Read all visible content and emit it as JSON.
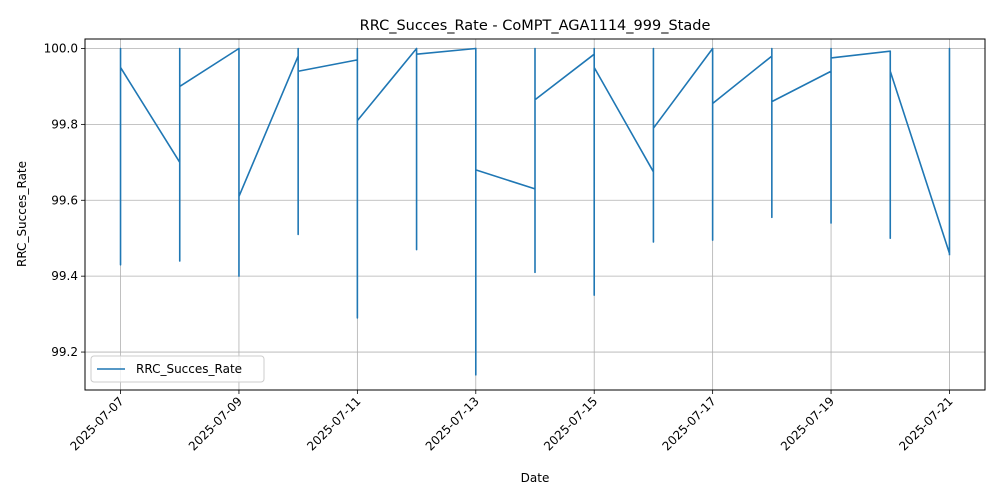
{
  "chart_data": {
    "type": "line",
    "title": "RRC_Succes_Rate - CoMPT_AGA1114_999_Stade",
    "xlabel": "Date",
    "ylabel": "RRC_Succes_Rate",
    "xlim": [
      "2025-07-06T09:36",
      "2025-07-21T14:24"
    ],
    "ylim": [
      99.1,
      100.025
    ],
    "grid": true,
    "legend_position": "lower-left",
    "x_ticks": [
      "2025-07-07",
      "2025-07-09",
      "2025-07-11",
      "2025-07-13",
      "2025-07-15",
      "2025-07-17",
      "2025-07-19",
      "2025-07-21"
    ],
    "y_ticks": [
      99.2,
      99.4,
      99.6,
      99.8,
      100.0
    ],
    "series": [
      {
        "name": "RRC_Succes_Rate",
        "color": "#1f77b4",
        "x": [
          "2025-07-07T00:00",
          "2025-07-07T00:00",
          "2025-07-07T00:00",
          "2025-07-07T00:00",
          "2025-07-07T00:00",
          "2025-07-07T00:00",
          "2025-07-08T00:00",
          "2025-07-08T00:00",
          "2025-07-08T00:00",
          "2025-07-08T00:00",
          "2025-07-08T00:00",
          "2025-07-09T00:00",
          "2025-07-09T00:00",
          "2025-07-09T00:00",
          "2025-07-10T00:00",
          "2025-07-10T00:00",
          "2025-07-10T00:00",
          "2025-07-10T00:00",
          "2025-07-11T00:00",
          "2025-07-11T00:00",
          "2025-07-11T00:00",
          "2025-07-11T00:00",
          "2025-07-12T00:00",
          "2025-07-12T00:00",
          "2025-07-12T00:00",
          "2025-07-12T00:00",
          "2025-07-13T00:00",
          "2025-07-13T00:00",
          "2025-07-13T00:00",
          "2025-07-14T00:00",
          "2025-07-14T00:00",
          "2025-07-14T00:00",
          "2025-07-14T00:00",
          "2025-07-15T00:00",
          "2025-07-15T00:00",
          "2025-07-15T00:00",
          "2025-07-15T00:00",
          "2025-07-16T00:00",
          "2025-07-16T00:00",
          "2025-07-16T00:00",
          "2025-07-16T00:00",
          "2025-07-17T00:00",
          "2025-07-17T00:00",
          "2025-07-17T00:00",
          "2025-07-17T00:00",
          "2025-07-18T00:00",
          "2025-07-18T00:00",
          "2025-07-18T00:00",
          "2025-07-18T00:00",
          "2025-07-18T00:00",
          "2025-07-19T00:00",
          "2025-07-19T00:00",
          "2025-07-19T00:00",
          "2025-07-19T00:00",
          "2025-07-20T00:00",
          "2025-07-20T00:00",
          "2025-07-20T00:00",
          "2025-07-20T00:00",
          "2025-07-21T00:00",
          "2025-07-21T00:00",
          "2025-07-21T00:00"
        ],
        "y": [
          99.92,
          100.0,
          99.9,
          99.43,
          99.97,
          99.95,
          99.7,
          100.0,
          99.44,
          99.95,
          99.9,
          100.0,
          99.4,
          99.61,
          99.98,
          100.0,
          99.51,
          99.94,
          99.97,
          100.0,
          99.29,
          99.81,
          100.0,
          99.47,
          99.99,
          99.985,
          100.0,
          99.14,
          99.68,
          99.63,
          100.0,
          99.41,
          99.865,
          99.985,
          100.0,
          99.35,
          99.95,
          99.675,
          100.0,
          99.49,
          99.79,
          100.0,
          99.495,
          99.85,
          99.855,
          99.98,
          100.0,
          99.555,
          99.86,
          99.86,
          99.94,
          100.0,
          99.54,
          99.975,
          99.993,
          99.97,
          99.5,
          99.94,
          99.46,
          100.0,
          99.455
        ]
      }
    ]
  }
}
